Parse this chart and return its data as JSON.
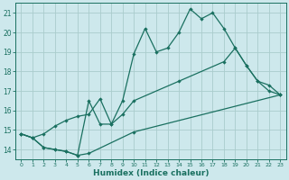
{
  "xlabel": "Humidex (Indice chaleur)",
  "bg_color": "#cde8ec",
  "grid_color": "#aacccc",
  "line_color": "#1a7060",
  "xlim": [
    -0.5,
    23.5
  ],
  "ylim": [
    13.5,
    21.5
  ],
  "yticks": [
    14,
    15,
    16,
    17,
    18,
    19,
    20,
    21
  ],
  "xticks": [
    0,
    1,
    2,
    3,
    4,
    5,
    6,
    7,
    8,
    9,
    10,
    11,
    12,
    13,
    14,
    15,
    16,
    17,
    18,
    19,
    20,
    21,
    22,
    23
  ],
  "line1_x": [
    0,
    1,
    2,
    3,
    4,
    5,
    6,
    7,
    8,
    9,
    10,
    11,
    12,
    13,
    14,
    15,
    16,
    17,
    18,
    19,
    20,
    21,
    22,
    23
  ],
  "line1_y": [
    14.8,
    14.6,
    14.1,
    14.0,
    13.9,
    13.7,
    16.5,
    15.3,
    15.3,
    16.5,
    18.9,
    20.2,
    19.0,
    19.2,
    20.0,
    21.2,
    20.7,
    21.0,
    20.2,
    19.2,
    18.3,
    17.5,
    17.0,
    16.8
  ],
  "line2_x": [
    0,
    1,
    2,
    3,
    4,
    5,
    6,
    7,
    8,
    9,
    10,
    14,
    18,
    19,
    20,
    21,
    22,
    23
  ],
  "line2_y": [
    14.8,
    14.6,
    14.8,
    15.2,
    15.5,
    15.7,
    15.8,
    16.6,
    15.3,
    15.8,
    16.5,
    17.5,
    18.5,
    19.2,
    18.3,
    17.5,
    17.3,
    16.8
  ],
  "line3_x": [
    0,
    1,
    2,
    3,
    4,
    5,
    6,
    10,
    23
  ],
  "line3_y": [
    14.8,
    14.6,
    14.1,
    14.0,
    13.9,
    13.7,
    13.8,
    14.9,
    16.8
  ]
}
